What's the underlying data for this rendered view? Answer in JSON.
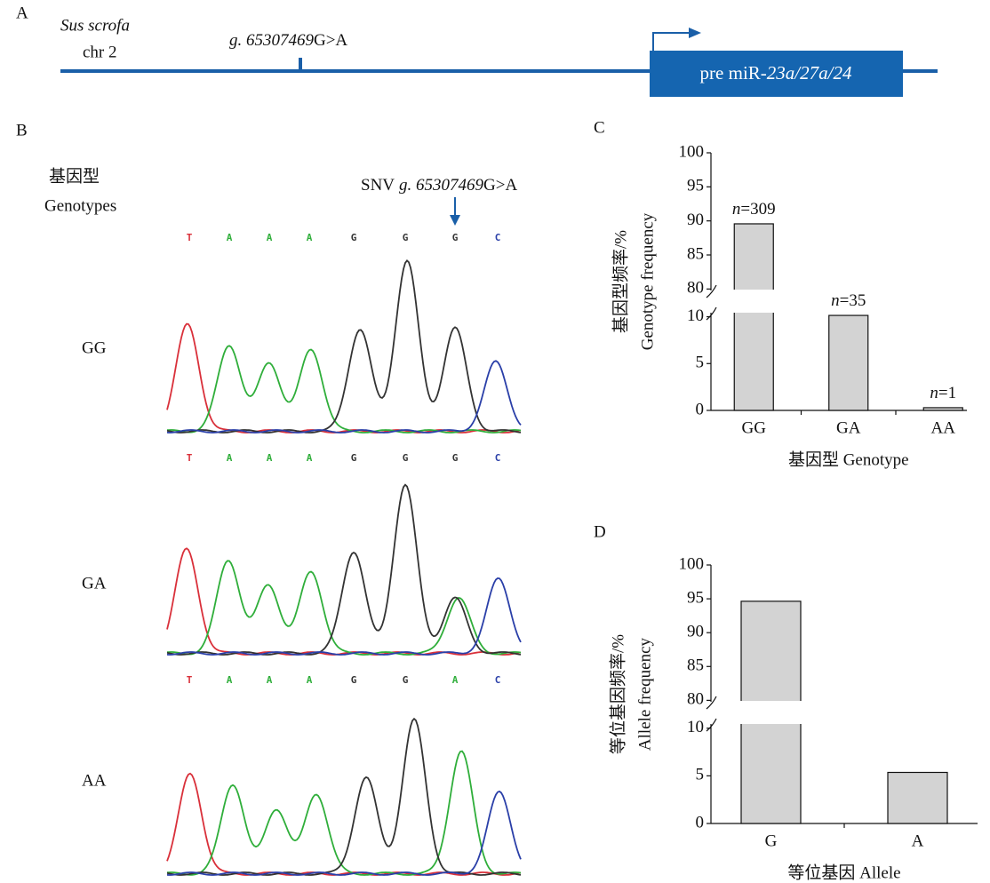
{
  "panel_a": {
    "panel_label": "A",
    "species": "Sus scrofa",
    "chromosome": "chr 2",
    "variant_parts": [
      "g. 65307469",
      "G>A"
    ],
    "gene_parts": [
      "pre miR-",
      "23a/27a/24"
    ]
  },
  "panel_b": {
    "panel_label": "B",
    "title_cn": "基因型",
    "title_en": "Genotypes",
    "snv_parts": [
      "SNV",
      "g. 65307469",
      "G>A"
    ],
    "base_colors": {
      "T": "#d9303a",
      "A": "#2fae3a",
      "G": "#333333",
      "C": "#2a3fa8"
    },
    "rows": [
      {
        "genotype": "GG",
        "bases": [
          "T",
          "A",
          "A",
          "A",
          "G",
          "G",
          "G",
          "C"
        ]
      },
      {
        "genotype": "GA",
        "bases": [
          "T",
          "A",
          "A",
          "A",
          "G",
          "G",
          "G",
          "C"
        ]
      },
      {
        "genotype": "AA",
        "bases": [
          "T",
          "A",
          "A",
          "A",
          "G",
          "G",
          "A",
          "C"
        ]
      }
    ]
  },
  "chart_data": [
    {
      "type": "bar",
      "panel_label": "C",
      "ylabel_cn": "基因型频率/%",
      "ylabel_en": "Genotype frequency",
      "xlabel": "基因型 Genotype",
      "categories": [
        "GG",
        "GA",
        "AA"
      ],
      "values": [
        89.57,
        10.14,
        0.29
      ],
      "count_labels": [
        [
          "n",
          "=309"
        ],
        [
          "n",
          "=35"
        ],
        [
          "n",
          "=1"
        ]
      ],
      "color": "#d3d3d3",
      "ylim": [
        0,
        100
      ],
      "ybreak": [
        11,
        79
      ],
      "yticks": [
        0,
        5,
        10,
        80,
        85,
        90,
        95,
        100
      ]
    },
    {
      "type": "bar",
      "panel_label": "D",
      "ylabel_cn": "等位基因频率/%",
      "ylabel_en": "Allele frequency",
      "xlabel": "等位基因 Allele",
      "categories": [
        "G",
        "A"
      ],
      "values": [
        94.64,
        5.36
      ],
      "color": "#d3d3d3",
      "ylim": [
        0,
        100
      ],
      "ybreak": [
        11,
        79
      ],
      "yticks": [
        0,
        5,
        10,
        80,
        85,
        90,
        95,
        100
      ]
    }
  ]
}
